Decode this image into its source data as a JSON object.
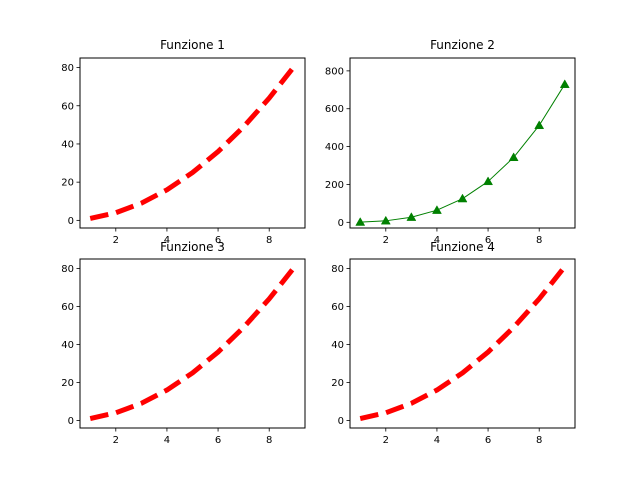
{
  "chart_data": [
    {
      "type": "line",
      "title": "Funzione 1",
      "xlabel": "",
      "ylabel": "",
      "x": [
        1,
        2,
        3,
        4,
        5,
        6,
        7,
        8,
        9
      ],
      "series": [
        {
          "values": [
            1,
            4,
            9,
            16,
            25,
            36,
            49,
            64,
            81
          ],
          "color": "#ff0000",
          "line_style": "dashed",
          "marker": "none"
        }
      ],
      "xlim": [
        0.6,
        9.4
      ],
      "ylim": [
        -4,
        85
      ],
      "xticks": [
        2,
        4,
        6,
        8
      ],
      "xtick_labels": [
        "2",
        "4",
        "6",
        "8"
      ],
      "yticks": [
        0,
        20,
        40,
        60,
        80
      ],
      "ytick_labels": [
        "0",
        "20",
        "40",
        "60",
        "80"
      ],
      "grid": false
    },
    {
      "type": "line",
      "title": "Funzione 2",
      "xlabel": "",
      "ylabel": "",
      "x": [
        1,
        2,
        3,
        4,
        5,
        6,
        7,
        8,
        9
      ],
      "series": [
        {
          "values": [
            1,
            8,
            27,
            64,
            125,
            216,
            343,
            512,
            729
          ],
          "color": "#008000",
          "line_style": "solid",
          "marker": "triangle-up"
        }
      ],
      "xlim": [
        0.6,
        9.4
      ],
      "ylim": [
        -30,
        868
      ],
      "xticks": [
        2,
        4,
        6,
        8
      ],
      "xtick_labels": [
        "2",
        "4",
        "6",
        "8"
      ],
      "yticks": [
        0,
        200,
        400,
        600,
        800
      ],
      "ytick_labels": [
        "0",
        "200",
        "400",
        "600",
        "800"
      ],
      "grid": false
    },
    {
      "type": "line",
      "title": "Funzione 3",
      "xlabel": "",
      "ylabel": "",
      "x": [
        1,
        2,
        3,
        4,
        5,
        6,
        7,
        8,
        9
      ],
      "series": [
        {
          "values": [
            1,
            4,
            9,
            16,
            25,
            36,
            49,
            64,
            81
          ],
          "color": "#ff0000",
          "line_style": "dashed",
          "marker": "none"
        }
      ],
      "xlim": [
        0.6,
        9.4
      ],
      "ylim": [
        -4,
        85
      ],
      "xticks": [
        2,
        4,
        6,
        8
      ],
      "xtick_labels": [
        "2",
        "4",
        "6",
        "8"
      ],
      "yticks": [
        0,
        20,
        40,
        60,
        80
      ],
      "ytick_labels": [
        "0",
        "20",
        "40",
        "60",
        "80"
      ],
      "grid": false
    },
    {
      "type": "line",
      "title": "Funzione 4",
      "xlabel": "",
      "ylabel": "",
      "x": [
        1,
        2,
        3,
        4,
        5,
        6,
        7,
        8,
        9
      ],
      "series": [
        {
          "values": [
            1,
            4,
            9,
            16,
            25,
            36,
            49,
            64,
            81
          ],
          "color": "#ff0000",
          "line_style": "dashed",
          "marker": "none"
        }
      ],
      "xlim": [
        0.6,
        9.4
      ],
      "ylim": [
        -4,
        85
      ],
      "xticks": [
        2,
        4,
        6,
        8
      ],
      "xtick_labels": [
        "2",
        "4",
        "6",
        "8"
      ],
      "yticks": [
        0,
        20,
        40,
        60,
        80
      ],
      "ytick_labels": [
        "0",
        "20",
        "40",
        "60",
        "80"
      ],
      "grid": false
    }
  ]
}
